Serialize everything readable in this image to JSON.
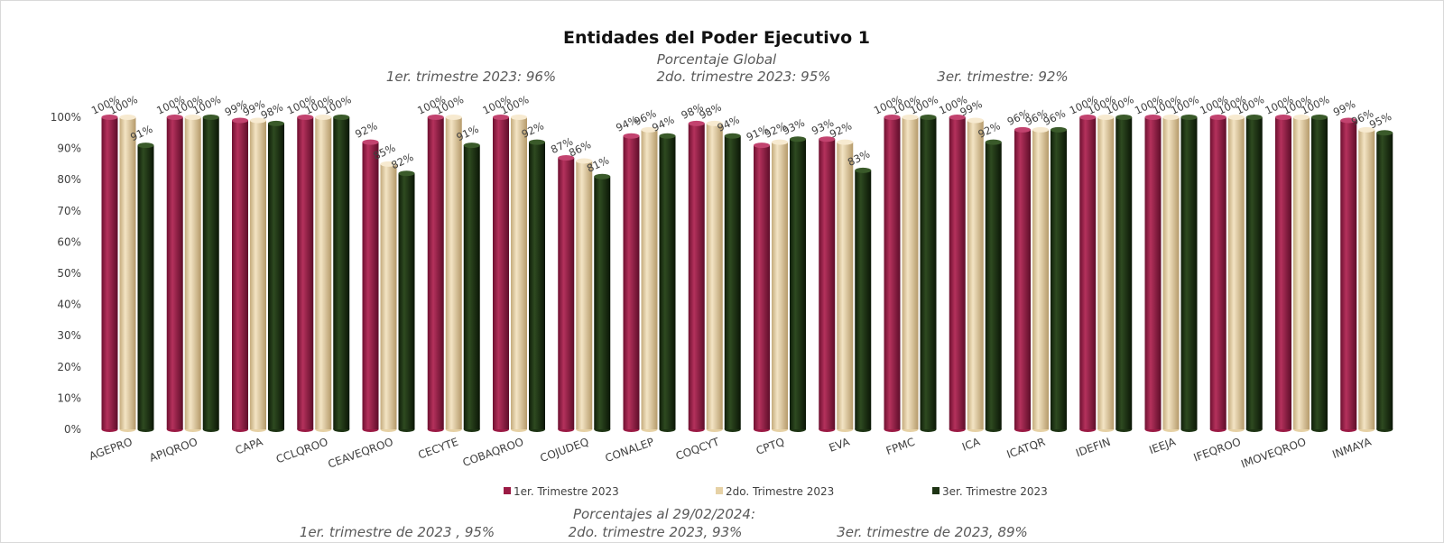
{
  "chart_data": {
    "type": "bar",
    "title": "Entidades del Poder Ejecutivo 1",
    "subtitle": "Porcentaje Global",
    "header_notes": [
      "1er. trimestre 2023: 96%",
      "2do. trimestre 2023: 95%",
      "3er. trimestre: 92%"
    ],
    "categories": [
      "AGEPRO",
      "APIQROO",
      "CAPA",
      "CCLQROO",
      "CEAVEQROO",
      "CECYTE",
      "COBAQROO",
      "COJUDEQ",
      "CONALEP",
      "COQCYT",
      "CPTQ",
      "EVA",
      "FPMC",
      "ICA",
      "ICATQR",
      "IDEFIN",
      "IEEJA",
      "IFEQROO",
      "IMOVEQROO",
      "INMAYA"
    ],
    "series": [
      {
        "name": "1er. Trimestre 2023",
        "color": "#9b1b45",
        "values": [
          100,
          100,
          99,
          100,
          92,
          100,
          100,
          87,
          94,
          98,
          91,
          93,
          100,
          100,
          96,
          100,
          100,
          100,
          100,
          99
        ]
      },
      {
        "name": "2do. Trimestre 2023",
        "color": "#e6d1a5",
        "values": [
          100,
          100,
          99,
          100,
          85,
          100,
          100,
          86,
          96,
          98,
          92,
          92,
          100,
          99,
          96,
          100,
          100,
          100,
          100,
          96
        ]
      },
      {
        "name": "3er. Trimestre 2023",
        "color": "#1e3414",
        "values": [
          91,
          100,
          98,
          100,
          82,
          91,
          92,
          81,
          94,
          94,
          93,
          83,
          100,
          92,
          96,
          100,
          100,
          100,
          100,
          95
        ]
      }
    ],
    "y_ticks": [
      "0%",
      "10%",
      "20%",
      "30%",
      "40%",
      "50%",
      "60%",
      "70%",
      "80%",
      "90%",
      "100%"
    ],
    "ylim": [
      0,
      100
    ],
    "value_suffix": "%",
    "legend_position": "bottom",
    "footer_title": "Porcentajes al 29/02/2024:",
    "footer_notes": [
      "1er. trimestre de 2023 , 95%",
      "2do. trimestre 2023, 93%",
      "3er. trimestre de 2023, 89%"
    ]
  }
}
